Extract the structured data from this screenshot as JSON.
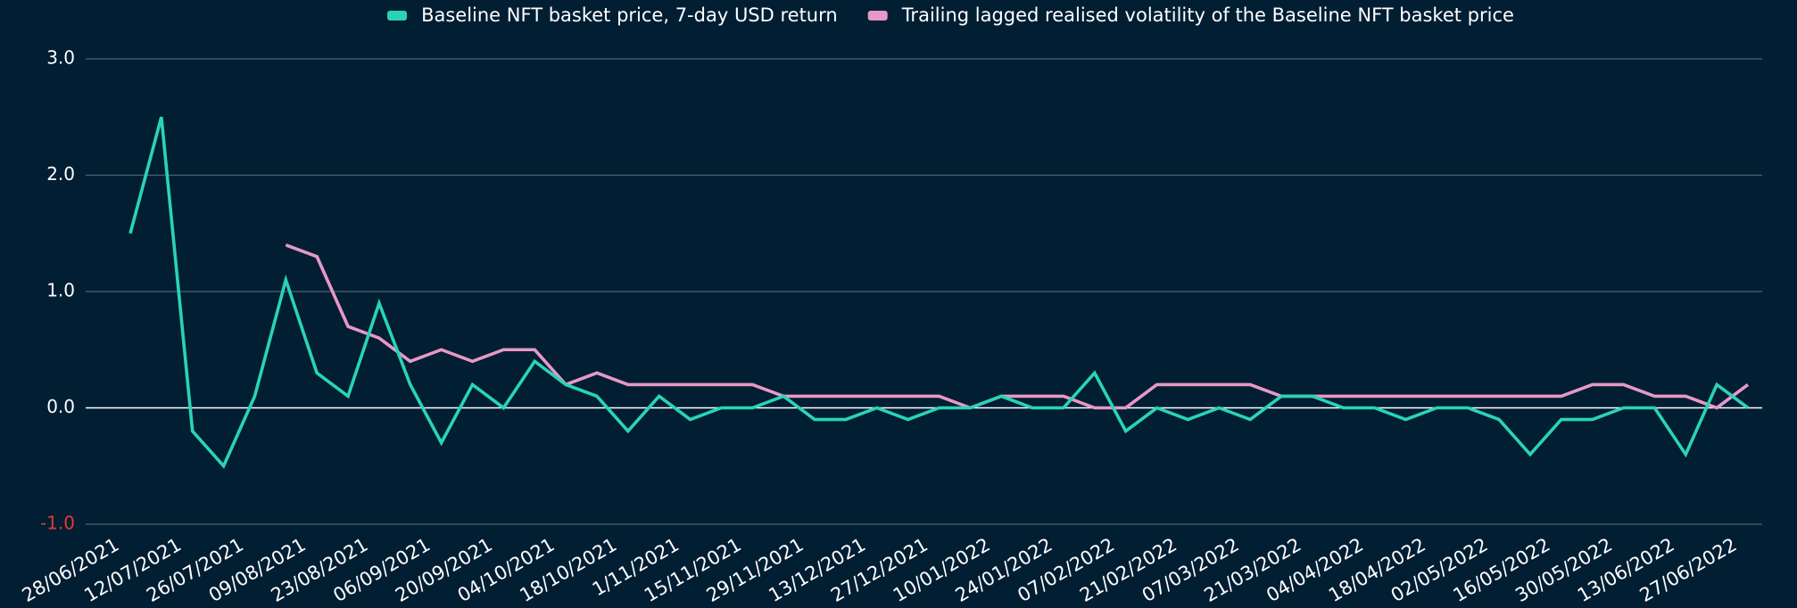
{
  "chart_data": {
    "type": "line",
    "categories": [
      "28/06/2021",
      null,
      "12/07/2021",
      null,
      "26/07/2021",
      null,
      "09/08/2021",
      null,
      "23/08/2021",
      null,
      "06/09/2021",
      null,
      "20/09/2021",
      null,
      "04/10/2021",
      null,
      "18/10/2021",
      null,
      "1/11/2021",
      null,
      "15/11/2021",
      null,
      "29/11/2021",
      null,
      "13/12/2021",
      null,
      "27/12/2021",
      null,
      "10/01/2022",
      null,
      "24/01/2022",
      null,
      "07/02/2022",
      null,
      "21/02/2022",
      null,
      "07/03/2022",
      null,
      "21/03/2022",
      null,
      "04/04/2022",
      null,
      "18/04/2022",
      null,
      "02/05/2022",
      null,
      "16/05/2022",
      null,
      "30/05/2022",
      null,
      "13/06/2022",
      null,
      "27/06/2022"
    ],
    "series": [
      {
        "name": "Baseline NFT basket price, 7-day USD return",
        "color": "#2ad4b2",
        "values": [
          1.5,
          2.5,
          -0.2,
          -0.5,
          0.1,
          1.1,
          0.3,
          0.1,
          0.9,
          0.2,
          -0.3,
          0.2,
          0.0,
          0.4,
          0.2,
          0.1,
          -0.2,
          0.1,
          -0.1,
          0.0,
          0.0,
          0.1,
          -0.1,
          -0.1,
          0.0,
          -0.1,
          0.0,
          0.0,
          0.1,
          0.0,
          0.0,
          0.3,
          -0.2,
          0.0,
          -0.1,
          0.0,
          -0.1,
          0.1,
          0.1,
          0.0,
          0.0,
          -0.1,
          0.0,
          0.0,
          -0.1,
          -0.4,
          -0.1,
          -0.1,
          0.0,
          0.0,
          -0.4,
          0.2,
          0.0
        ]
      },
      {
        "name": "Trailing lagged realised volatility of the Baseline NFT basket price",
        "color": "#e898c6",
        "values": [
          null,
          null,
          null,
          null,
          null,
          1.4,
          1.3,
          0.7,
          0.6,
          0.4,
          0.5,
          0.4,
          0.5,
          0.5,
          0.2,
          0.3,
          0.2,
          0.2,
          0.2,
          0.2,
          0.2,
          0.1,
          0.1,
          0.1,
          0.1,
          0.1,
          0.1,
          0.0,
          0.1,
          0.1,
          0.1,
          0.0,
          0.0,
          0.2,
          0.2,
          0.2,
          0.2,
          0.1,
          0.1,
          0.1,
          0.1,
          0.1,
          0.1,
          0.1,
          0.1,
          0.1,
          0.1,
          0.2,
          0.2,
          0.1,
          0.1,
          0.0,
          0.2
        ]
      }
    ],
    "ylim": [
      -1,
      3
    ],
    "yticks": [
      {
        "value": -1,
        "label": "-1.0"
      },
      {
        "value": 0,
        "label": "0.0"
      },
      {
        "value": 1,
        "label": "1.0"
      },
      {
        "value": 2,
        "label": "2.0"
      },
      {
        "value": 3,
        "label": "3.0"
      }
    ],
    "ytick_label_colors": [
      "#e53935",
      "#ffffff",
      "#ffffff",
      "#ffffff",
      "#ffffff"
    ],
    "grid": true,
    "grid_color": "#4b6373",
    "zero_line_color": "#ffffff",
    "legend": "top"
  }
}
